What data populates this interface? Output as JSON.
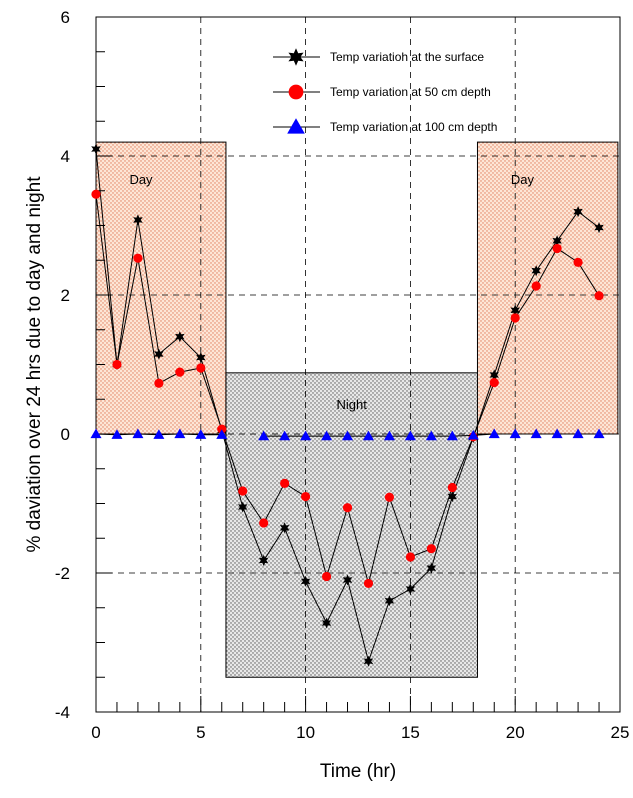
{
  "chart_data": {
    "type": "line",
    "xlabel": "Time (hr)",
    "ylabel": "% daviation over 24 hrs due to day and night",
    "xlim": [
      0,
      25
    ],
    "ylim": [
      -4,
      6
    ],
    "x_ticks": [
      0,
      5,
      10,
      15,
      20,
      25
    ],
    "y_ticks": [
      -4,
      -2,
      0,
      2,
      4,
      6
    ],
    "grid": true,
    "legend_position": "top-right",
    "regions": [
      {
        "label": "Day",
        "x0": 0,
        "x1": 6.2,
        "y0": 0,
        "y1": 4.2,
        "color": "#f4c9a8"
      },
      {
        "label": "Night",
        "x0": 6.2,
        "x1": 18.2,
        "y0": -3.5,
        "y1": 0.88,
        "color": "#cfcfcf"
      },
      {
        "label": "Day",
        "x0": 18.2,
        "x1": 24.9,
        "y0": 0,
        "y1": 4.2,
        "color": "#f4c9a8"
      }
    ],
    "x": [
      0,
      1,
      2,
      3,
      4,
      5,
      6,
      7,
      8,
      9,
      10,
      11,
      12,
      13,
      14,
      15,
      16,
      17,
      18,
      19,
      20,
      21,
      22,
      23,
      24
    ],
    "series": [
      {
        "name": "Temp variatioh at the surface",
        "marker": "star",
        "color": "#000000",
        "values": [
          4.1,
          1.0,
          3.08,
          1.15,
          1.4,
          1.1,
          0.05,
          -1.05,
          -1.82,
          -1.35,
          -2.12,
          -2.72,
          -2.1,
          -3.27,
          -2.4,
          -2.23,
          -1.93,
          -0.9,
          -0.05,
          0.85,
          1.78,
          2.35,
          2.78,
          3.2,
          2.97
        ]
      },
      {
        "name": "Temp variation at 50 cm depth",
        "marker": "circle",
        "color": "#ff0000",
        "values": [
          3.45,
          1.0,
          2.53,
          0.73,
          0.89,
          0.95,
          0.07,
          -0.82,
          -1.28,
          -0.71,
          -0.9,
          -2.05,
          -1.06,
          -2.15,
          -0.91,
          -1.77,
          -1.65,
          -0.77,
          -0.04,
          0.74,
          1.67,
          2.13,
          2.67,
          2.47,
          1.99
        ]
      },
      {
        "name": "Temp variation at 100 cm depth",
        "marker": "triangle",
        "color": "#0000ff",
        "values": [
          0.0,
          -0.01,
          0.0,
          -0.01,
          0.0,
          -0.01,
          -0.01,
          null,
          -0.03,
          -0.03,
          -0.03,
          -0.03,
          -0.03,
          -0.03,
          -0.03,
          -0.03,
          -0.03,
          -0.03,
          -0.02,
          0.0,
          0.0,
          0.0,
          0.0,
          0.0,
          0.0
        ]
      }
    ]
  }
}
